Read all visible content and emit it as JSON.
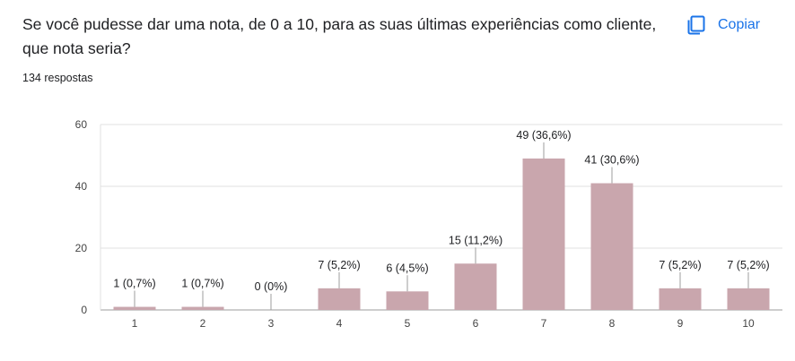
{
  "question": {
    "title": "Se você pudesse dar uma nota, de 0 a 10, para as suas últimas experiências como cliente, que nota seria?",
    "response_count": "134 respostas"
  },
  "actions": {
    "copy_label": "Copiar",
    "copy_icon": "copy-icon"
  },
  "colors": {
    "bar": "#c9a6ad",
    "accent": "#1a73e8",
    "grid": "#e0e0e0"
  },
  "chart_data": {
    "type": "bar",
    "categories": [
      "1",
      "2",
      "3",
      "4",
      "5",
      "6",
      "7",
      "8",
      "9",
      "10"
    ],
    "values": [
      1,
      1,
      0,
      7,
      6,
      15,
      49,
      41,
      7,
      7
    ],
    "data_labels": [
      "1 (0,7%)",
      "1 (0,7%)",
      "0 (0%)",
      "7 (5,2%)",
      "6 (4,5%)",
      "15 (11,2%)",
      "49 (36,6%)",
      "41 (30,6%)",
      "7 (5,2%)",
      "7 (5,2%)"
    ],
    "yticks": [
      0,
      20,
      40,
      60
    ],
    "ylim": [
      0,
      60
    ],
    "grid": true,
    "legend": "none"
  }
}
